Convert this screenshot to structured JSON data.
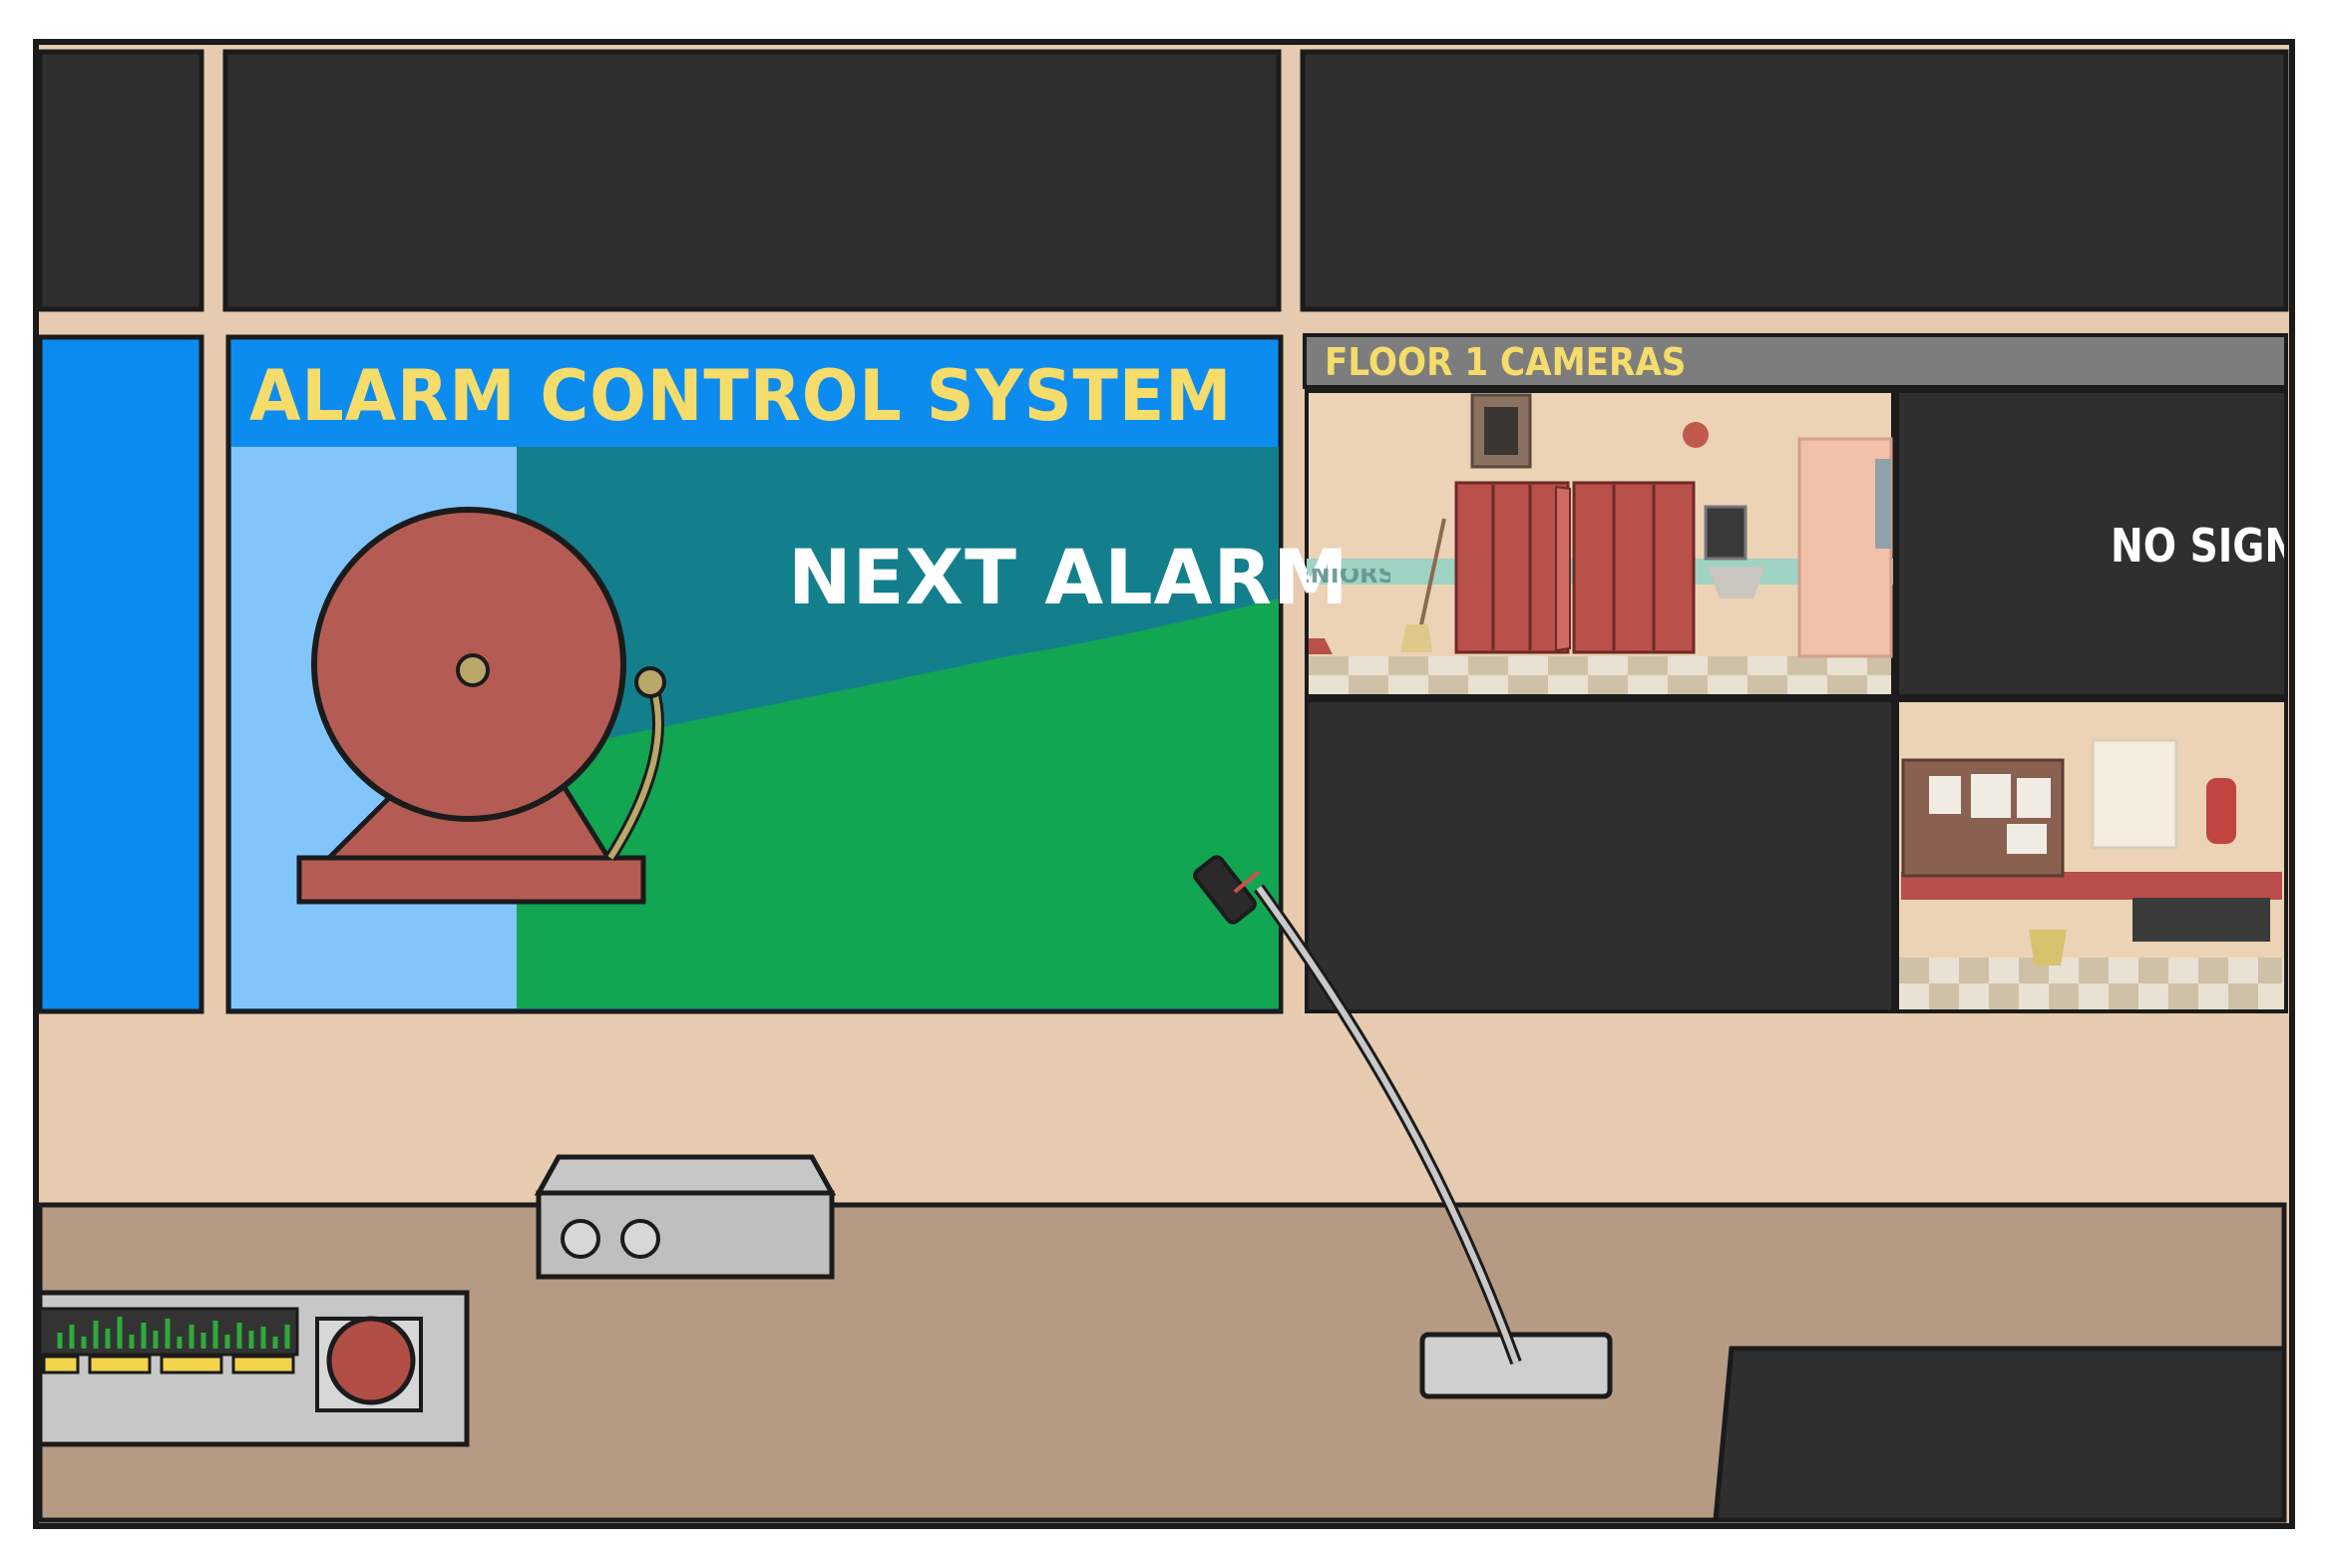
{
  "alarm_panel": {
    "title": "ALARM CONTROL SYSTEM",
    "next_alarm_label": "NEXT ALARM"
  },
  "camera_panel": {
    "title": "FLOOR 1 CAMERAS",
    "feeds": [
      {
        "id": "cam-hallway-lockers",
        "status": "live",
        "sign_text": "SENIORS"
      },
      {
        "id": "cam-2",
        "status": "no-signal",
        "message": "NO SIGNAL"
      },
      {
        "id": "cam-3",
        "status": "off"
      },
      {
        "id": "cam-corridor-bench",
        "status": "live"
      }
    ]
  },
  "desk": {
    "microphone": "gooseneck-microphone",
    "amplifier": "amplifier-box",
    "console": "control-console",
    "big_red_button": "alarm-trigger-button"
  },
  "colors": {
    "title_yellow": "#f5dc6b",
    "alarm_header_blue": "#0d8cf0",
    "screen_bezel": "#e6cbb0",
    "desk": "#b59a84",
    "bell_red": "#b45c54",
    "dark_screen": "#2f2f2f"
  }
}
